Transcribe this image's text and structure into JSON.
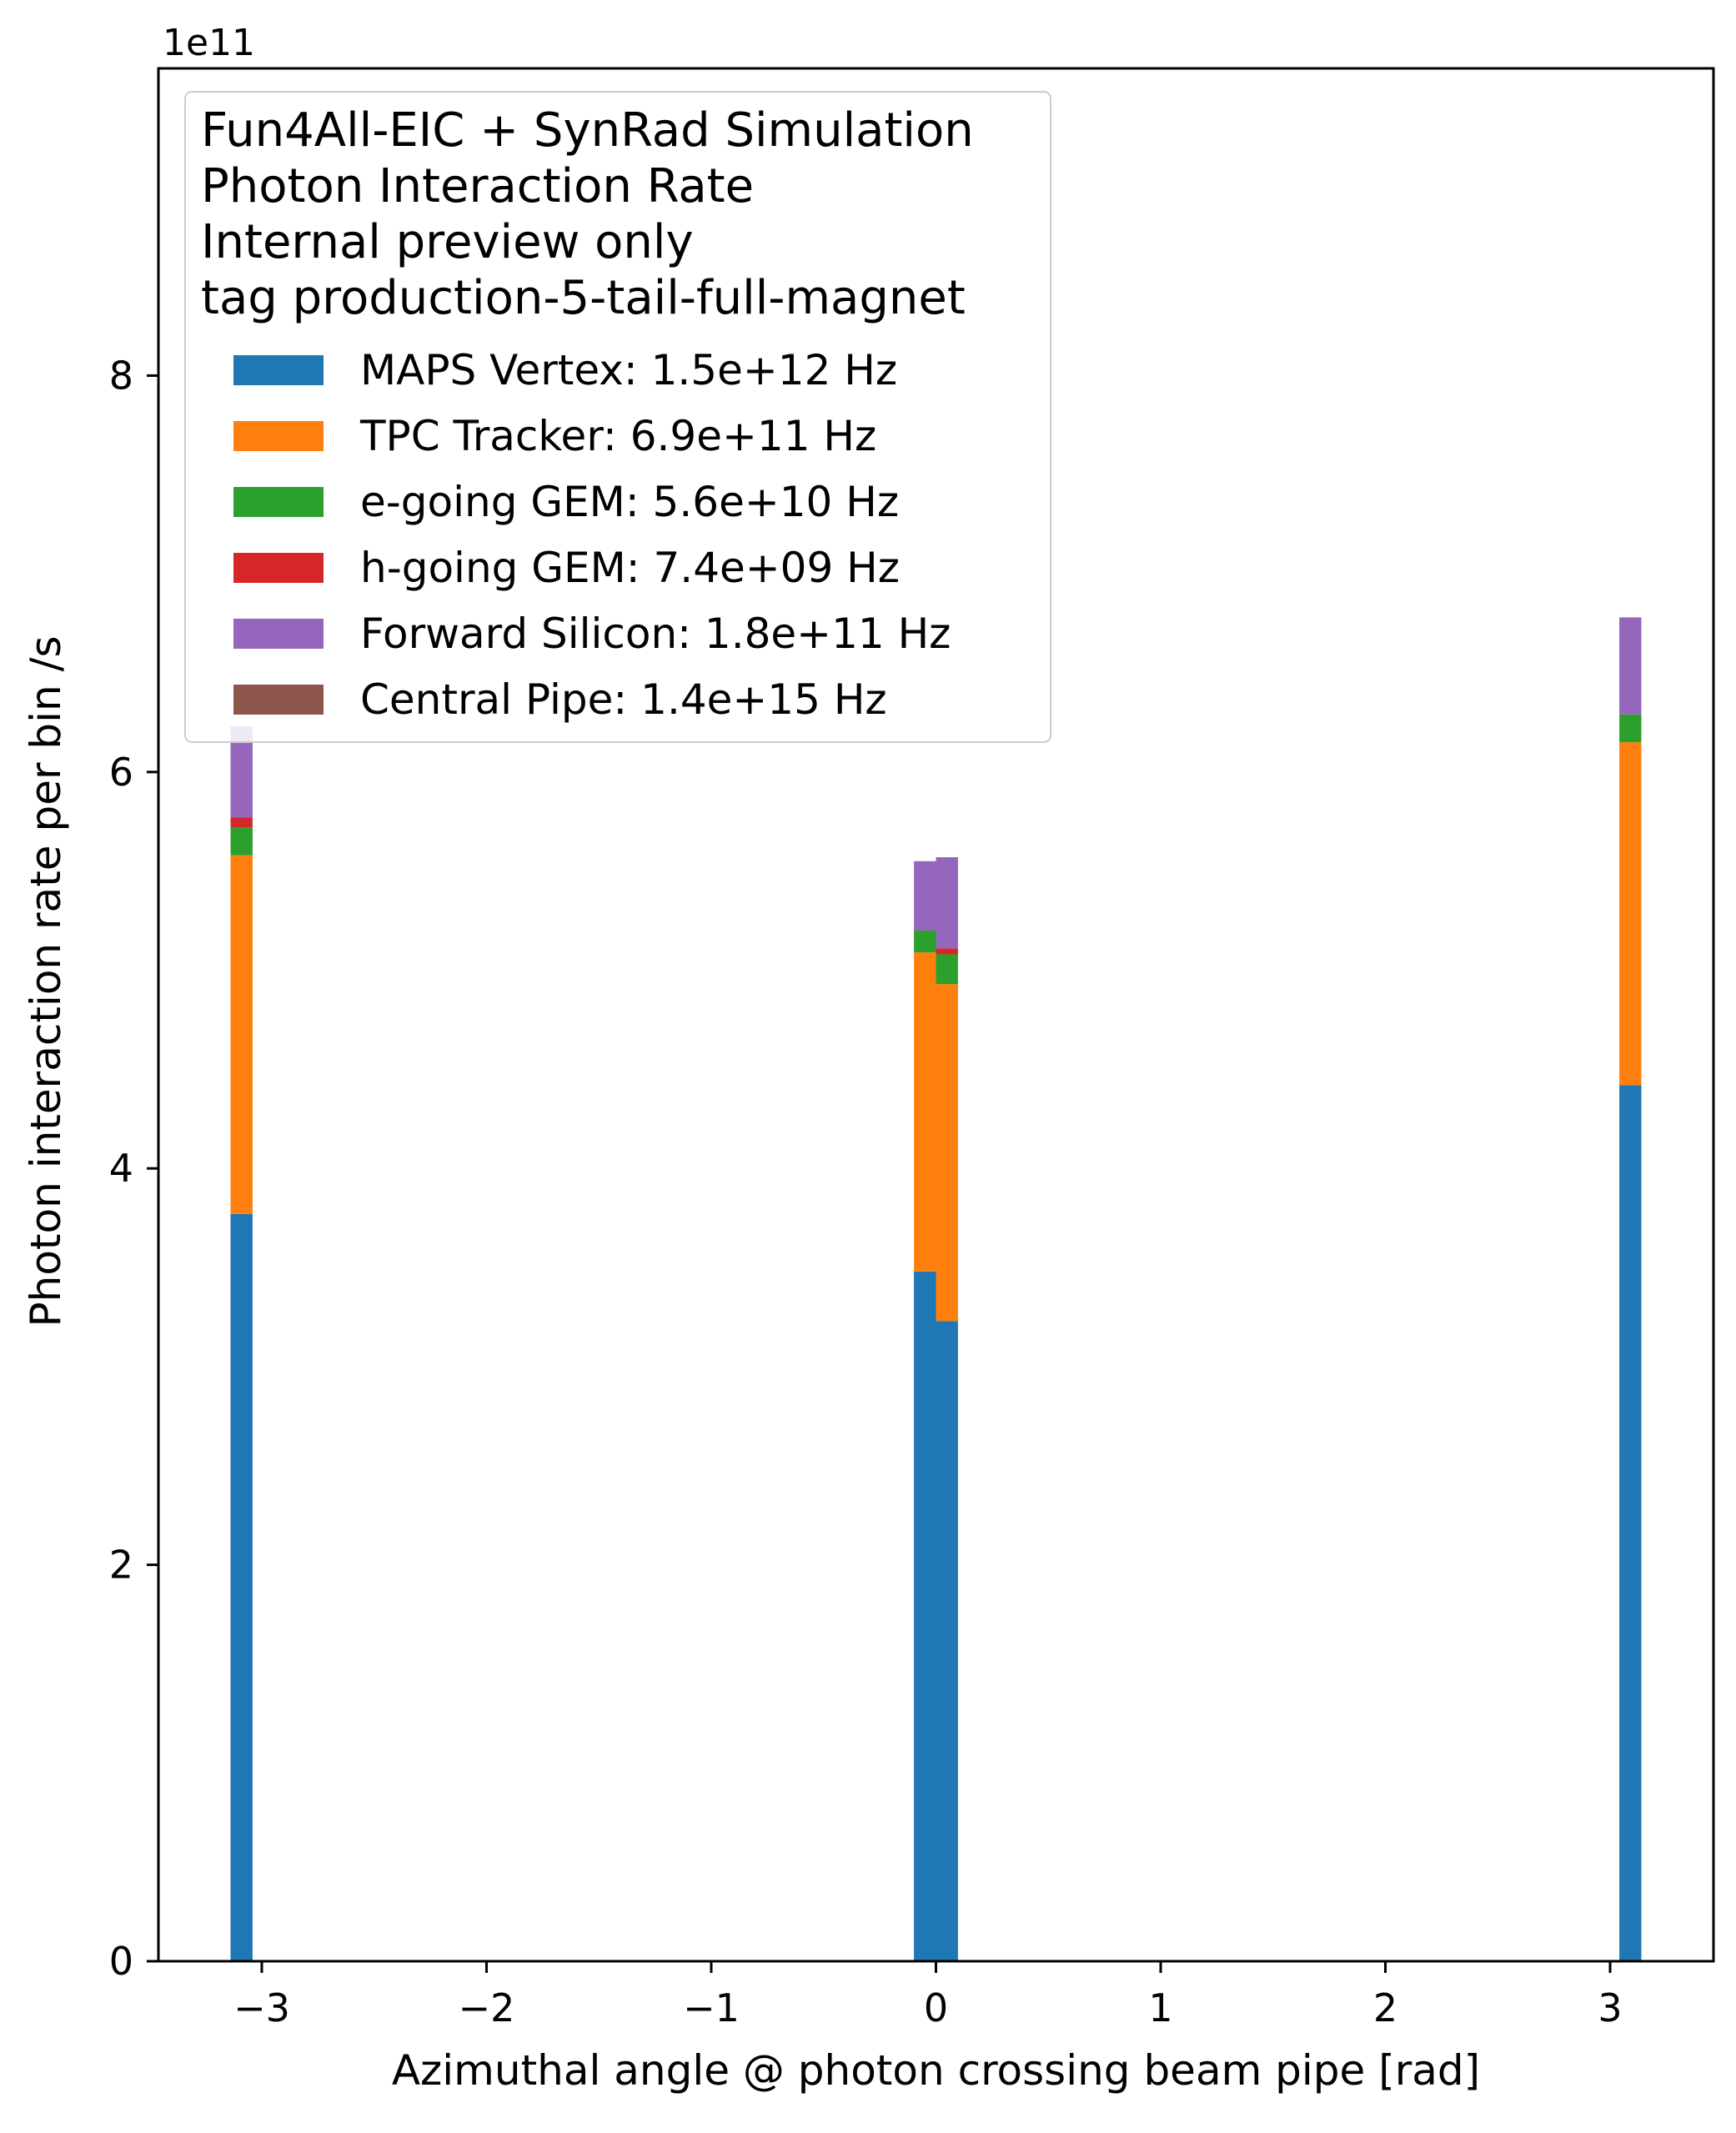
{
  "chart_data": {
    "type": "bar",
    "stacked": true,
    "title": "",
    "xlabel": "Azimuthal angle @ photon crossing beam pipe [rad]",
    "ylabel": "Photon interaction rate per bin /s",
    "y_offset_label": "1e11",
    "y_scale": 100000000000.0,
    "xlim": [
      -3.46,
      3.46
    ],
    "ylim": [
      0,
      9.55
    ],
    "x_ticks": [
      -3,
      -2,
      -1,
      0,
      1,
      2,
      3
    ],
    "x_tick_labels": [
      "−3",
      "−2",
      "−1",
      "0",
      "1",
      "2",
      "3"
    ],
    "y_ticks": [
      0,
      2,
      4,
      6,
      8
    ],
    "y_tick_labels": [
      "0",
      "2",
      "4",
      "6",
      "8"
    ],
    "bin_width": 0.098,
    "bins": [
      -3.09,
      -0.049,
      0.049,
      3.09
    ],
    "legend": {
      "location": "upper-left",
      "title_lines": [
        "Fun4All-EIC + SynRad Simulation",
        "Photon Interaction Rate",
        "Internal preview only",
        "tag production-5-tail-full-magnet"
      ]
    },
    "series": [
      {
        "name": "MAPS Vertex: 1.5e+12 Hz",
        "color": "#1f77b4",
        "values": [
          3.77,
          3.48,
          3.23,
          4.42
        ]
      },
      {
        "name": "TPC Tracker: 6.9e+11 Hz",
        "color": "#ff7f0e",
        "values": [
          1.81,
          1.61,
          1.7,
          1.73
        ]
      },
      {
        "name": "e-going GEM: 5.6e+10 Hz",
        "color": "#2ca02c",
        "values": [
          0.14,
          0.11,
          0.15,
          0.14
        ]
      },
      {
        "name": "h-going GEM: 7.4e+09 Hz",
        "color": "#d62728",
        "values": [
          0.05,
          0.0,
          0.03,
          0.0
        ]
      },
      {
        "name": "Forward Silicon: 1.8e+11 Hz",
        "color": "#9467bd",
        "values": [
          0.46,
          0.35,
          0.46,
          0.49
        ]
      },
      {
        "name": "Central Pipe: 1.4e+15 Hz",
        "color": "#8c564b",
        "values": [
          0,
          0,
          0,
          0
        ]
      }
    ]
  }
}
